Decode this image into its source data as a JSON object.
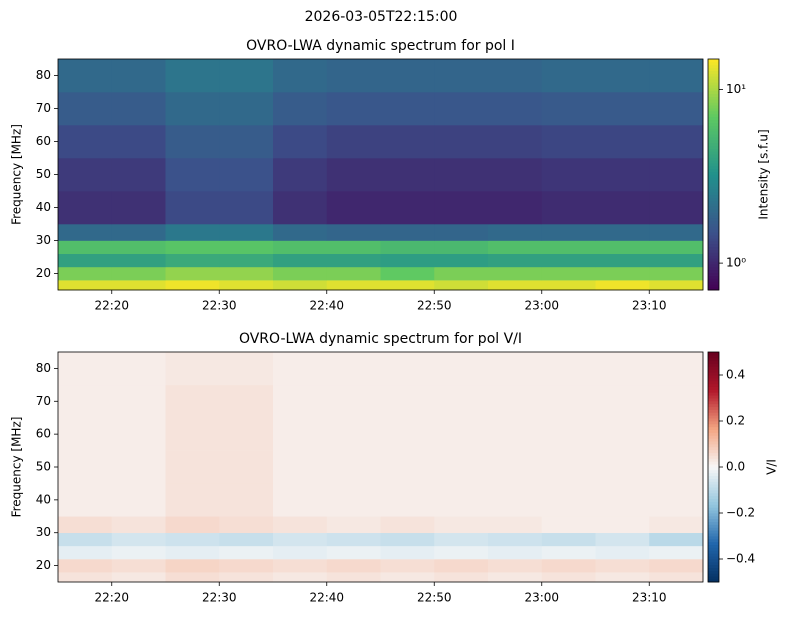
{
  "suptitle": "2026-03-05T22:15:00",
  "chart_data": [
    {
      "type": "heatmap",
      "title": "OVRO-LWA dynamic spectrum for pol I",
      "ylabel": "Frequency [MHz]",
      "xlim": [
        "22:15",
        "23:15"
      ],
      "xticks": [
        "22:20",
        "22:30",
        "22:40",
        "22:50",
        "23:00",
        "23:10"
      ],
      "ylim": [
        15,
        85
      ],
      "yticks": [
        20,
        30,
        40,
        50,
        60,
        70,
        80
      ],
      "x_edges": [
        "22:15",
        "22:20",
        "22:25",
        "22:30",
        "22:35",
        "22:40",
        "22:45",
        "22:50",
        "22:55",
        "23:00",
        "23:05",
        "23:10",
        "23:15"
      ],
      "y_edges": [
        15,
        18,
        22,
        26,
        30,
        35,
        45,
        55,
        65,
        75,
        85
      ],
      "values": [
        [
          13,
          13,
          14,
          13,
          12,
          13,
          13,
          12,
          13,
          13,
          14,
          13
        ],
        [
          8,
          8,
          9,
          9,
          8,
          8,
          7,
          8,
          8,
          8,
          8,
          8
        ],
        [
          4,
          4,
          4.5,
          4.5,
          4,
          4,
          3.8,
          3.8,
          4,
          4,
          4,
          4
        ],
        [
          6,
          6,
          6.5,
          6.5,
          6,
          6,
          5.5,
          5.5,
          6,
          6,
          6,
          6
        ],
        [
          2,
          2,
          2.4,
          2.4,
          2,
          1.9,
          1.9,
          1.9,
          2,
          2,
          2,
          2
        ],
        [
          1.1,
          1.1,
          1.4,
          1.4,
          1.1,
          1,
          1,
          1,
          1,
          1.05,
          1.05,
          1.05
        ],
        [
          1.2,
          1.2,
          1.5,
          1.5,
          1.2,
          1.1,
          1.1,
          1.1,
          1.1,
          1.15,
          1.15,
          1.15
        ],
        [
          1.4,
          1.4,
          1.7,
          1.7,
          1.4,
          1.3,
          1.3,
          1.3,
          1.3,
          1.35,
          1.35,
          1.35
        ],
        [
          1.7,
          1.7,
          2,
          2,
          1.7,
          1.6,
          1.6,
          1.6,
          1.6,
          1.65,
          1.65,
          1.65
        ],
        [
          2,
          2,
          2.3,
          2.3,
          2,
          1.9,
          1.9,
          1.9,
          1.9,
          2,
          2,
          2
        ]
      ],
      "colorbar_label": "Intensity [s.f.u]",
      "clim": [
        0.7,
        15
      ],
      "log_color": true,
      "cticks": [
        {
          "value": 1,
          "label": "10⁰"
        },
        {
          "value": 10,
          "label": "10¹"
        }
      ],
      "colormap": [
        "#440154",
        "#3b528b",
        "#21918c",
        "#5ec962",
        "#fde725"
      ]
    },
    {
      "type": "heatmap",
      "title": "OVRO-LWA dynamic spectrum for pol V/I",
      "ylabel": "Frequency [MHz]",
      "xlim": [
        "22:15",
        "23:15"
      ],
      "xticks": [
        "22:20",
        "22:30",
        "22:40",
        "22:50",
        "23:00",
        "23:10"
      ],
      "ylim": [
        15,
        85
      ],
      "yticks": [
        20,
        30,
        40,
        50,
        60,
        70,
        80
      ],
      "x_edges": [
        "22:15",
        "22:20",
        "22:25",
        "22:30",
        "22:35",
        "22:40",
        "22:45",
        "22:50",
        "22:55",
        "23:00",
        "23:05",
        "23:10",
        "23:15"
      ],
      "y_edges": [
        15,
        18,
        22,
        26,
        30,
        35,
        45,
        55,
        65,
        75,
        85
      ],
      "values": [
        [
          0.04,
          0.03,
          0.05,
          0.04,
          0.03,
          0.04,
          0.03,
          0.04,
          0.03,
          0.04,
          0.03,
          0.04
        ],
        [
          0.06,
          0.05,
          0.07,
          0.06,
          0.05,
          0.06,
          0.05,
          0.06,
          0.05,
          0.06,
          0.05,
          0.06
        ],
        [
          -0.03,
          -0.02,
          -0.03,
          -0.02,
          -0.03,
          -0.02,
          -0.03,
          -0.02,
          -0.03,
          -0.02,
          -0.03,
          -0.02
        ],
        [
          -0.08,
          -0.06,
          -0.07,
          -0.08,
          -0.06,
          -0.07,
          -0.08,
          -0.06,
          -0.07,
          -0.08,
          -0.06,
          -0.1
        ],
        [
          0.05,
          0.04,
          0.06,
          0.05,
          0.04,
          0.03,
          0.04,
          0.03,
          0.03,
          0.02,
          0.02,
          0.03
        ],
        [
          0.02,
          0.02,
          0.04,
          0.04,
          0.02,
          0.02,
          0.02,
          0.02,
          0.02,
          0.02,
          0.02,
          0.02
        ],
        [
          0.02,
          0.02,
          0.04,
          0.04,
          0.02,
          0.02,
          0.02,
          0.02,
          0.02,
          0.02,
          0.02,
          0.02
        ],
        [
          0.02,
          0.02,
          0.04,
          0.04,
          0.02,
          0.02,
          0.02,
          0.02,
          0.02,
          0.02,
          0.02,
          0.02
        ],
        [
          0.02,
          0.02,
          0.04,
          0.04,
          0.02,
          0.02,
          0.02,
          0.02,
          0.02,
          0.02,
          0.02,
          0.02
        ],
        [
          0.02,
          0.02,
          0.03,
          0.03,
          0.02,
          0.02,
          0.02,
          0.02,
          0.02,
          0.02,
          0.02,
          0.02
        ]
      ],
      "colorbar_label": "V/I",
      "clim": [
        -0.5,
        0.5
      ],
      "log_color": false,
      "cticks": [
        {
          "value": -0.4,
          "label": "−0.4"
        },
        {
          "value": -0.2,
          "label": "−0.2"
        },
        {
          "value": 0,
          "label": "0.0"
        },
        0.2,
        0.4
      ],
      "colormap": [
        "#053061",
        "#2166ac",
        "#92c5de",
        "#f7f7f7",
        "#f4a582",
        "#b2182b",
        "#67001f"
      ]
    }
  ]
}
